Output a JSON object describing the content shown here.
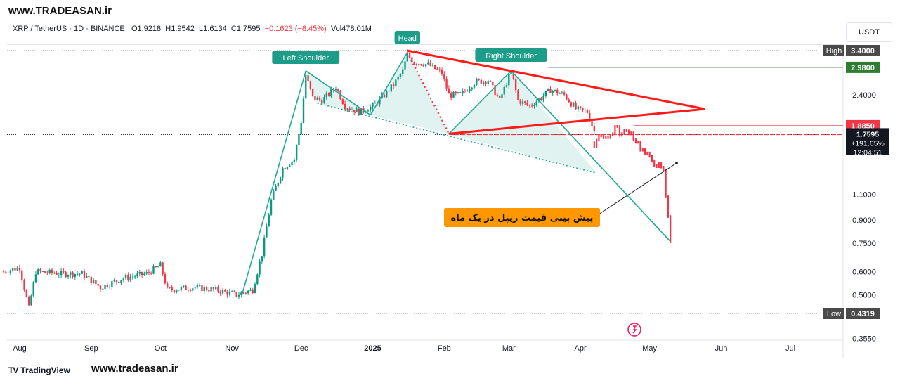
{
  "watermark": "www.TRADEASAN.ir",
  "footer_brand": "TradingView",
  "footer_site": "www.tradeasan.ir",
  "currency_button": "USDT",
  "symbol": {
    "pair": "XRP / TetherUS · 1D · BINANCE",
    "open_label": "O",
    "open": "1.9218",
    "high_label": "H",
    "high": "1.9542",
    "low_label": "L",
    "low": "1.6134",
    "close_label": "C",
    "close": "1.7595",
    "change": "−0.1623 (−8.45%)",
    "vol_label": "Vol",
    "volume": "478.01M"
  },
  "chart_data": {
    "type": "candlestick",
    "y_scale": "log",
    "ylim": [
      0.33,
      4.0
    ],
    "y_ticks": [
      "2.4000",
      "1.1000",
      "0.9000",
      "0.7500",
      "0.6000",
      "0.5000",
      "0.3550"
    ],
    "x_ticks": [
      "Aug",
      "Sep",
      "Oct",
      "Nov",
      "Dec",
      "2025",
      "Feb",
      "Mar",
      "Apr",
      "May",
      "Jun",
      "Jul"
    ],
    "price_labels": [
      {
        "name": "High",
        "value": "3.4000",
        "color": "#4a4a4a"
      },
      {
        "name": "",
        "value": "2.9800",
        "color": "#2e7d32"
      },
      {
        "name": "",
        "value": "1.8850",
        "color": "#f23645"
      },
      {
        "name": "",
        "value": "1.7400",
        "color": "#f23645"
      },
      {
        "name": "Low",
        "value": "0.4319",
        "color": "#4a4a4a"
      }
    ],
    "current_price": {
      "value": "1.7595",
      "change": "+191.65%",
      "countdown": "12:04:51"
    },
    "pattern_labels": [
      "Left Shoulder",
      "Head",
      "Right Shoulder"
    ],
    "annotation": "پیش بینی قیمت ریپل در یک ماه",
    "price_path": [
      [
        "2024-07-25",
        0.6
      ],
      [
        "2024-08-01",
        0.62
      ],
      [
        "2024-08-05",
        0.45
      ],
      [
        "2024-08-08",
        0.6
      ],
      [
        "2024-08-20",
        0.59
      ],
      [
        "2024-08-28",
        0.59
      ],
      [
        "2024-09-05",
        0.53
      ],
      [
        "2024-09-15",
        0.57
      ],
      [
        "2024-09-25",
        0.59
      ],
      [
        "2024-10-01",
        0.63
      ],
      [
        "2024-10-04",
        0.52
      ],
      [
        "2024-10-15",
        0.53
      ],
      [
        "2024-10-25",
        0.52
      ],
      [
        "2024-11-03",
        0.5
      ],
      [
        "2024-11-10",
        0.52
      ],
      [
        "2024-11-14",
        0.69
      ],
      [
        "2024-11-18",
        1.05
      ],
      [
        "2024-11-23",
        1.35
      ],
      [
        "2024-11-28",
        1.45
      ],
      [
        "2024-12-01",
        1.95
      ],
      [
        "2024-12-03",
        2.8
      ],
      [
        "2024-12-06",
        2.35
      ],
      [
        "2024-12-10",
        2.3
      ],
      [
        "2024-12-16",
        2.55
      ],
      [
        "2024-12-20",
        2.2
      ],
      [
        "2024-12-26",
        2.1
      ],
      [
        "2025-01-01",
        2.2
      ],
      [
        "2025-01-05",
        2.35
      ],
      [
        "2025-01-10",
        2.6
      ],
      [
        "2025-01-14",
        2.9
      ],
      [
        "2025-01-16",
        3.3
      ],
      [
        "2025-01-19",
        3.1
      ],
      [
        "2025-01-25",
        3.05
      ],
      [
        "2025-01-31",
        2.85
      ],
      [
        "2025-02-03",
        2.4
      ],
      [
        "2025-02-08",
        2.4
      ],
      [
        "2025-02-14",
        2.65
      ],
      [
        "2025-02-20",
        2.7
      ],
      [
        "2025-02-25",
        2.3
      ],
      [
        "2025-03-02",
        2.9
      ],
      [
        "2025-03-05",
        2.3
      ],
      [
        "2025-03-10",
        2.2
      ],
      [
        "2025-03-15",
        2.35
      ],
      [
        "2025-03-19",
        2.5
      ],
      [
        "2025-03-25",
        2.4
      ],
      [
        "2025-03-30",
        2.15
      ],
      [
        "2025-04-04",
        2.1
      ],
      [
        "2025-04-07",
        1.8
      ]
    ],
    "forecast_path": [
      [
        "2025-04-07",
        1.65
      ],
      [
        "2025-04-10",
        1.78
      ],
      [
        "2025-04-13",
        1.7
      ],
      [
        "2025-04-16",
        1.86
      ],
      [
        "2025-04-19",
        1.76
      ],
      [
        "2025-04-22",
        1.82
      ],
      [
        "2025-04-25",
        1.68
      ],
      [
        "2025-04-28",
        1.55
      ],
      [
        "2025-05-01",
        1.45
      ],
      [
        "2025-05-04",
        1.4
      ],
      [
        "2025-05-07",
        1.3
      ],
      [
        "2025-05-10",
        0.76
      ]
    ]
  },
  "colors": {
    "bull": "#089981",
    "bear": "#f23645",
    "pattern": "#22ab94",
    "fill": "rgba(34,171,148,0.14)",
    "trend": "#ff1a1a",
    "label_bg": "#1e9c8a",
    "annotation_bg": "#ff9800"
  }
}
